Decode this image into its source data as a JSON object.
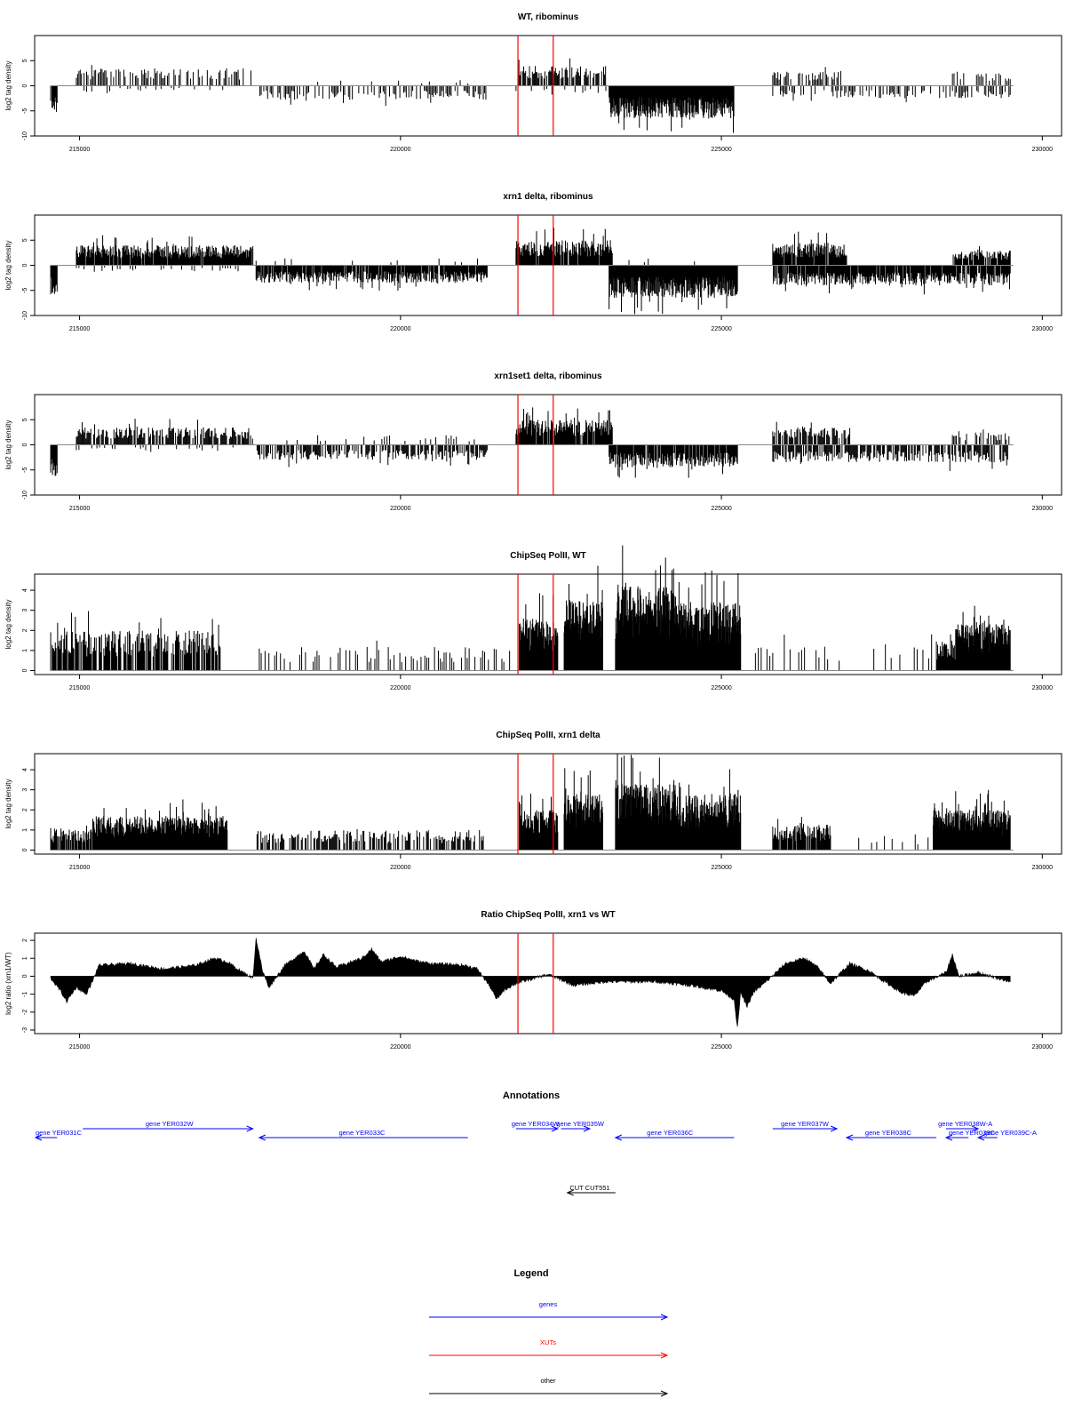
{
  "chart_data": [
    {
      "type": "bar",
      "title": "WT, ribominus",
      "ylabel": "log2 tag density",
      "xlim": [
        214300,
        230300
      ],
      "ylim": [
        -10,
        10
      ],
      "yticks": [
        "-10",
        "-5",
        "0",
        "5"
      ],
      "xticks": [
        "215000",
        "220000",
        "225000",
        "230000"
      ],
      "markers": [
        221830,
        222380
      ],
      "marker_color": "#ff0000",
      "segments": [
        {
          "x0": 214550,
          "x1": 214650,
          "sign": -1,
          "amp": 5.5,
          "step": 10,
          "fill": 0.95
        },
        {
          "x0": 214950,
          "x1": 217700,
          "sign": 1,
          "amp": 3.5,
          "step": 20,
          "fill": 0.6
        },
        {
          "x0": 214950,
          "x1": 217700,
          "sign": -1,
          "amp": 1.2,
          "step": 40,
          "fill": 0.25
        },
        {
          "x0": 217750,
          "x1": 221350,
          "sign": -1,
          "amp": 2.8,
          "step": 20,
          "fill": 0.6
        },
        {
          "x0": 217750,
          "x1": 221350,
          "sign": 1,
          "amp": 1.2,
          "step": 60,
          "fill": 0.15
        },
        {
          "x0": 221800,
          "x1": 223200,
          "sign": 1,
          "amp": 4.0,
          "step": 15,
          "fill": 0.8
        },
        {
          "x0": 221800,
          "x1": 223200,
          "sign": -1,
          "amp": 1.5,
          "step": 40,
          "fill": 0.3
        },
        {
          "x0": 223250,
          "x1": 225200,
          "sign": -1,
          "amp": 6.5,
          "step": 8,
          "fill": 1.0
        },
        {
          "x0": 225800,
          "x1": 226900,
          "sign": 1,
          "amp": 3.0,
          "step": 20,
          "fill": 0.6
        },
        {
          "x0": 225800,
          "x1": 229500,
          "sign": -1,
          "amp": 2.5,
          "step": 20,
          "fill": 0.5
        },
        {
          "x0": 228600,
          "x1": 229500,
          "sign": 1,
          "amp": 2.5,
          "step": 25,
          "fill": 0.55
        }
      ]
    },
    {
      "type": "bar",
      "title": "xrn1 delta, ribominus",
      "ylabel": "log2 tag density",
      "xlim": [
        214300,
        230300
      ],
      "ylim": [
        -10,
        10
      ],
      "yticks": [
        "-10",
        "-5",
        "0",
        "5"
      ],
      "xticks": [
        "215000",
        "220000",
        "225000",
        "230000"
      ],
      "markers": [
        221830,
        222380
      ],
      "marker_color": "#ff0000",
      "segments": [
        {
          "x0": 214550,
          "x1": 214650,
          "sign": -1,
          "amp": 6.0,
          "step": 10,
          "fill": 0.95
        },
        {
          "x0": 214950,
          "x1": 217700,
          "sign": 1,
          "amp": 4.0,
          "step": 10,
          "fill": 0.95
        },
        {
          "x0": 214950,
          "x1": 217700,
          "sign": -1,
          "amp": 1.2,
          "step": 40,
          "fill": 0.3
        },
        {
          "x0": 217750,
          "x1": 221350,
          "sign": -1,
          "amp": 3.5,
          "step": 10,
          "fill": 0.9
        },
        {
          "x0": 217750,
          "x1": 221350,
          "sign": 1,
          "amp": 1.5,
          "step": 50,
          "fill": 0.2
        },
        {
          "x0": 221800,
          "x1": 223300,
          "sign": 1,
          "amp": 5.0,
          "step": 10,
          "fill": 0.95
        },
        {
          "x0": 223250,
          "x1": 225250,
          "sign": -1,
          "amp": 6.5,
          "step": 8,
          "fill": 1.0
        },
        {
          "x0": 223500,
          "x1": 225000,
          "sign": 1,
          "amp": 1.5,
          "step": 60,
          "fill": 0.2
        },
        {
          "x0": 225800,
          "x1": 226950,
          "sign": 1,
          "amp": 4.5,
          "step": 10,
          "fill": 0.95
        },
        {
          "x0": 225800,
          "x1": 229500,
          "sign": -1,
          "amp": 4.0,
          "step": 10,
          "fill": 0.9
        },
        {
          "x0": 228600,
          "x1": 229500,
          "sign": 1,
          "amp": 3.0,
          "step": 12,
          "fill": 0.85
        }
      ]
    },
    {
      "type": "bar",
      "title": "xrn1set1 delta, ribominus",
      "ylabel": "log2 tag density",
      "xlim": [
        214300,
        230300
      ],
      "ylim": [
        -10,
        10
      ],
      "yticks": [
        "-10",
        "-5",
        "0",
        "5"
      ],
      "xticks": [
        "215000",
        "220000",
        "225000",
        "230000"
      ],
      "markers": [
        221830,
        222380
      ],
      "marker_color": "#ff0000",
      "segments": [
        {
          "x0": 214550,
          "x1": 214650,
          "sign": -1,
          "amp": 6.5,
          "step": 10,
          "fill": 0.95
        },
        {
          "x0": 214950,
          "x1": 217700,
          "sign": 1,
          "amp": 3.5,
          "step": 15,
          "fill": 0.8
        },
        {
          "x0": 214950,
          "x1": 217700,
          "sign": -1,
          "amp": 1.2,
          "step": 40,
          "fill": 0.3
        },
        {
          "x0": 217750,
          "x1": 221350,
          "sign": -1,
          "amp": 3.0,
          "step": 15,
          "fill": 0.7
        },
        {
          "x0": 217750,
          "x1": 221350,
          "sign": 1,
          "amp": 2.0,
          "step": 40,
          "fill": 0.3
        },
        {
          "x0": 221800,
          "x1": 223300,
          "sign": 1,
          "amp": 5.0,
          "step": 10,
          "fill": 0.9
        },
        {
          "x0": 223250,
          "x1": 225250,
          "sign": -1,
          "amp": 4.5,
          "step": 10,
          "fill": 0.9
        },
        {
          "x0": 225800,
          "x1": 227000,
          "sign": 1,
          "amp": 3.5,
          "step": 15,
          "fill": 0.75
        },
        {
          "x0": 225800,
          "x1": 229500,
          "sign": -1,
          "amp": 3.5,
          "step": 15,
          "fill": 0.7
        },
        {
          "x0": 228600,
          "x1": 229500,
          "sign": 1,
          "amp": 2.5,
          "step": 20,
          "fill": 0.6
        }
      ]
    },
    {
      "type": "bar",
      "title": "ChipSeq PolII, WT",
      "ylabel": "log2 tag density",
      "xlim": [
        214300,
        230300
      ],
      "ylim": [
        -0.2,
        4.8
      ],
      "yticks": [
        "0",
        "1",
        "2",
        "3",
        "4"
      ],
      "xticks": [
        "215000",
        "220000",
        "225000",
        "230000"
      ],
      "markers": [
        221830,
        222380
      ],
      "marker_color": "#ff0000",
      "segments": [
        {
          "x0": 214550,
          "x1": 217200,
          "sign": 1,
          "amp": 2.0,
          "step": 12,
          "fill": 0.75
        },
        {
          "x0": 217800,
          "x1": 221700,
          "sign": 1,
          "amp": 1.2,
          "step": 30,
          "fill": 0.45
        },
        {
          "x0": 221850,
          "x1": 222450,
          "sign": 1,
          "amp": 2.6,
          "step": 6,
          "fill": 1.0
        },
        {
          "x0": 222550,
          "x1": 223150,
          "sign": 1,
          "amp": 3.5,
          "step": 5,
          "fill": 1.0
        },
        {
          "x0": 223350,
          "x1": 224300,
          "sign": 1,
          "amp": 4.2,
          "step": 5,
          "fill": 1.0
        },
        {
          "x0": 224300,
          "x1": 225300,
          "sign": 1,
          "amp": 3.4,
          "step": 5,
          "fill": 1.0
        },
        {
          "x0": 225350,
          "x1": 228300,
          "sign": 1,
          "amp": 1.2,
          "step": 45,
          "fill": 0.35
        },
        {
          "x0": 228350,
          "x1": 228650,
          "sign": 1,
          "amp": 1.5,
          "step": 10,
          "fill": 0.9
        },
        {
          "x0": 228650,
          "x1": 229500,
          "sign": 1,
          "amp": 2.3,
          "step": 5,
          "fill": 1.0
        }
      ]
    },
    {
      "type": "bar",
      "title": "ChipSeq PolII, xrn1 delta",
      "ylabel": "log2 tag density",
      "xlim": [
        214300,
        230300
      ],
      "ylim": [
        -0.2,
        4.8
      ],
      "yticks": [
        "0",
        "1",
        "2",
        "3",
        "4"
      ],
      "xticks": [
        "215000",
        "220000",
        "225000",
        "230000"
      ],
      "markers": [
        221830,
        222380
      ],
      "marker_color": "#ff0000",
      "segments": [
        {
          "x0": 214550,
          "x1": 215200,
          "sign": 1,
          "amp": 1.1,
          "step": 10,
          "fill": 0.8
        },
        {
          "x0": 215200,
          "x1": 217300,
          "sign": 1,
          "amp": 1.7,
          "step": 6,
          "fill": 1.0
        },
        {
          "x0": 217750,
          "x1": 221300,
          "sign": 1,
          "amp": 1.0,
          "step": 15,
          "fill": 0.6
        },
        {
          "x0": 221850,
          "x1": 222450,
          "sign": 1,
          "amp": 2.0,
          "step": 6,
          "fill": 1.0
        },
        {
          "x0": 222550,
          "x1": 223150,
          "sign": 1,
          "amp": 2.8,
          "step": 5,
          "fill": 1.0
        },
        {
          "x0": 223350,
          "x1": 224300,
          "sign": 1,
          "amp": 3.3,
          "step": 5,
          "fill": 1.0
        },
        {
          "x0": 224300,
          "x1": 225300,
          "sign": 1,
          "amp": 2.8,
          "step": 5,
          "fill": 1.0
        },
        {
          "x0": 225800,
          "x1": 226700,
          "sign": 1,
          "amp": 1.3,
          "step": 10,
          "fill": 0.85
        },
        {
          "x0": 226700,
          "x1": 228300,
          "sign": 1,
          "amp": 0.8,
          "step": 40,
          "fill": 0.35
        },
        {
          "x0": 228300,
          "x1": 229500,
          "sign": 1,
          "amp": 2.0,
          "step": 5,
          "fill": 1.0
        }
      ]
    },
    {
      "type": "area",
      "title": "Ratio ChipSeq PolII, xrn1 vs WT",
      "ylabel": "log2 ratio (xrn1/WT)",
      "xlim": [
        214300,
        230300
      ],
      "ylim": [
        -3.2,
        2.4
      ],
      "yticks": [
        "-3",
        "-2",
        "-1",
        "0",
        "1",
        "2"
      ],
      "xticks": [
        "215000",
        "220000",
        "225000",
        "230000"
      ],
      "markers": [
        221830,
        222380
      ],
      "marker_color": "#ff0000",
      "x": [
        214550,
        214700,
        214800,
        214950,
        215100,
        215200,
        215300,
        215800,
        216300,
        216800,
        217100,
        217300,
        217500,
        217700,
        217750,
        217850,
        217950,
        218200,
        218500,
        218650,
        218800,
        219000,
        219400,
        219550,
        219700,
        220000,
        220300,
        220500,
        221000,
        221200,
        221400,
        221500,
        221600,
        221800,
        222000,
        222300,
        222700,
        223200,
        224000,
        224500,
        225000,
        225200,
        225250,
        225300,
        225400,
        225500,
        225700,
        226000,
        226300,
        226500,
        226700,
        227000,
        227300,
        227500,
        227800,
        228000,
        228200,
        228500,
        228600,
        228700,
        229000,
        229300,
        229500
      ],
      "values": [
        -0.1,
        -0.8,
        -1.4,
        -0.6,
        -1.0,
        -0.3,
        0.6,
        0.7,
        0.4,
        0.6,
        1.0,
        0.8,
        0.3,
        -0.1,
        2.1,
        0.3,
        -0.6,
        0.6,
        1.4,
        0.4,
        1.2,
        0.5,
        1.0,
        1.5,
        0.8,
        1.1,
        0.8,
        0.7,
        0.6,
        0.4,
        -0.6,
        -1.3,
        -0.8,
        -0.4,
        -0.2,
        0.1,
        -0.5,
        -0.3,
        -0.3,
        -0.5,
        -0.8,
        -1.3,
        -2.9,
        -0.9,
        -1.7,
        -0.9,
        -0.3,
        0.7,
        1.0,
        0.5,
        -0.4,
        0.7,
        0.3,
        -0.2,
        -0.9,
        -1.1,
        -0.3,
        0.2,
        1.2,
        0.0,
        0.2,
        -0.1,
        -0.3
      ]
    }
  ],
  "annotations": {
    "title": "Annotations",
    "xlim": [
      214300,
      230300
    ],
    "genes": [
      {
        "label": "gene YER031C",
        "x0": 214000,
        "x1": 214650,
        "dir": "left",
        "row": 1,
        "lx": 214300
      },
      {
        "label": "gene YER032W",
        "x0": 215050,
        "x1": 217700,
        "dir": "right",
        "row": 0,
        "lx": 216400
      },
      {
        "label": "gene YER033C",
        "x0": 217800,
        "x1": 221050,
        "dir": "left",
        "row": 1,
        "lx": 219400
      },
      {
        "label": "gene YER034W",
        "x0": 221800,
        "x1": 222450,
        "dir": "right",
        "row": 0,
        "lx": 222100
      },
      {
        "label": "gene YER035W",
        "x0": 222500,
        "x1": 222950,
        "dir": "right",
        "row": 0,
        "lx": 222800
      },
      {
        "label": "gene YER036C",
        "x0": 223350,
        "x1": 225200,
        "dir": "left",
        "row": 1,
        "lx": 224200
      },
      {
        "label": "gene YER037W",
        "x0": 225800,
        "x1": 226800,
        "dir": "right",
        "row": 0,
        "lx": 226300
      },
      {
        "label": "gene YER038C",
        "x0": 226950,
        "x1": 228350,
        "dir": "left",
        "row": 1,
        "lx": 227600
      },
      {
        "label": "gene YER038W-A",
        "x0": 228500,
        "x1": 229000,
        "dir": "right",
        "row": 0,
        "lx": 228800
      },
      {
        "label": "gene YER039C",
        "x0": 228500,
        "x1": 228850,
        "dir": "left",
        "row": 1,
        "lx": 228900
      },
      {
        "label": "gene YER039C-A",
        "x0": 229000,
        "x1": 229300,
        "dir": "left",
        "row": 1,
        "lx": 229500
      }
    ],
    "others": [
      {
        "label": "CUT CUT551",
        "x0": 222600,
        "x1": 223350,
        "dir": "left",
        "lx": 222950
      }
    ]
  },
  "legend": {
    "title": "Legend",
    "items": [
      {
        "label": "genes",
        "color": "#0000ff"
      },
      {
        "label": "XUTs",
        "color": "#ff0000"
      },
      {
        "label": "other",
        "color": "#000000"
      }
    ]
  }
}
